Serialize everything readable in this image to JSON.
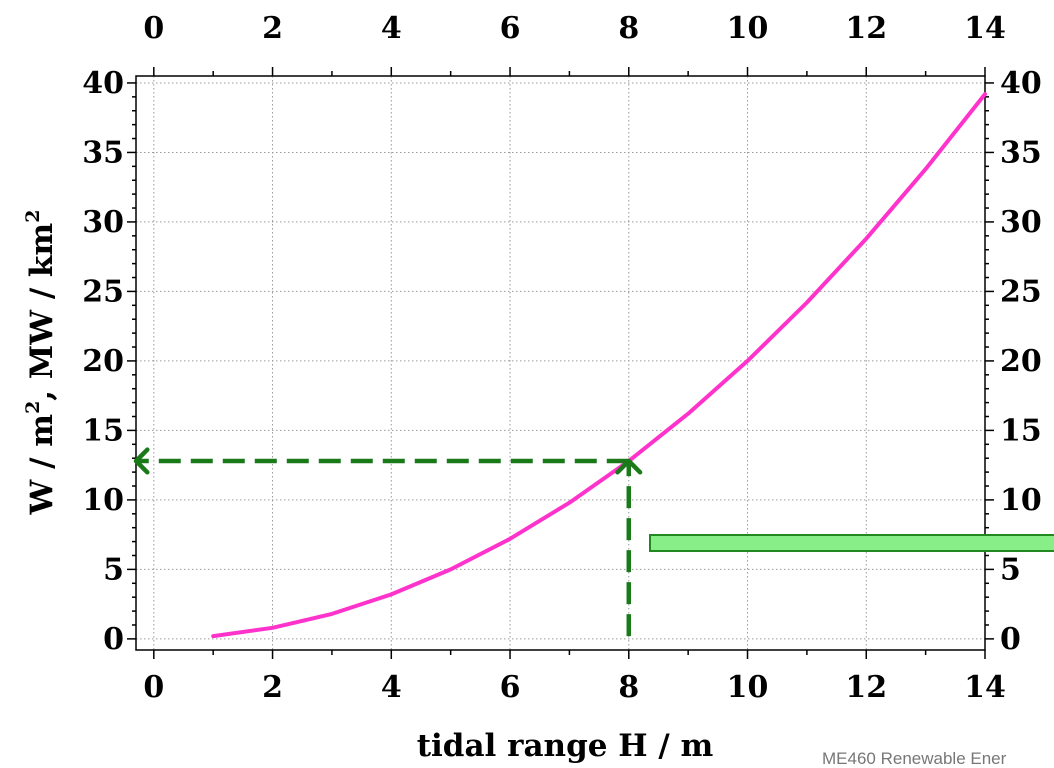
{
  "chart_data": {
    "type": "line",
    "xlabel": "tidal range H / m",
    "ylabel": "W / m², MW / km²",
    "ylabel_parts": [
      "W / m",
      "2",
      ", MW / km",
      "2"
    ],
    "xlim": [
      -0.3,
      14.0
    ],
    "ylim": [
      -0.8,
      40.5
    ],
    "x_ticks": [
      "0",
      "2",
      "4",
      "6",
      "8",
      "10",
      "12",
      "14"
    ],
    "y_ticks": [
      "0",
      "5",
      "10",
      "15",
      "20",
      "25",
      "30",
      "35",
      "40"
    ],
    "grid": true,
    "series": [
      {
        "color": "#ff33cc",
        "x": [
          1,
          2,
          3,
          4,
          5,
          6,
          7,
          8,
          9,
          10,
          11,
          12,
          13,
          14
        ],
        "y": [
          0.2,
          0.8,
          1.8,
          3.2,
          5.0,
          7.2,
          9.8,
          12.8,
          16.2,
          20.0,
          24.2,
          28.8,
          33.8,
          39.2
        ]
      }
    ],
    "annotations": [
      {
        "type": "dashed-arrow",
        "color": "#1a7a1a",
        "from": [
          8,
          0.2
        ],
        "to": [
          8,
          12.8
        ]
      },
      {
        "type": "dashed-arrow",
        "color": "#1a7a1a",
        "from": [
          8,
          12.8
        ],
        "to": [
          -0.3,
          12.8
        ]
      }
    ],
    "highlight_box": {
      "fill": "#88ee88",
      "stroke": "#228822"
    }
  },
  "footer": {
    "text": "ME460 Renewable Ener"
  }
}
